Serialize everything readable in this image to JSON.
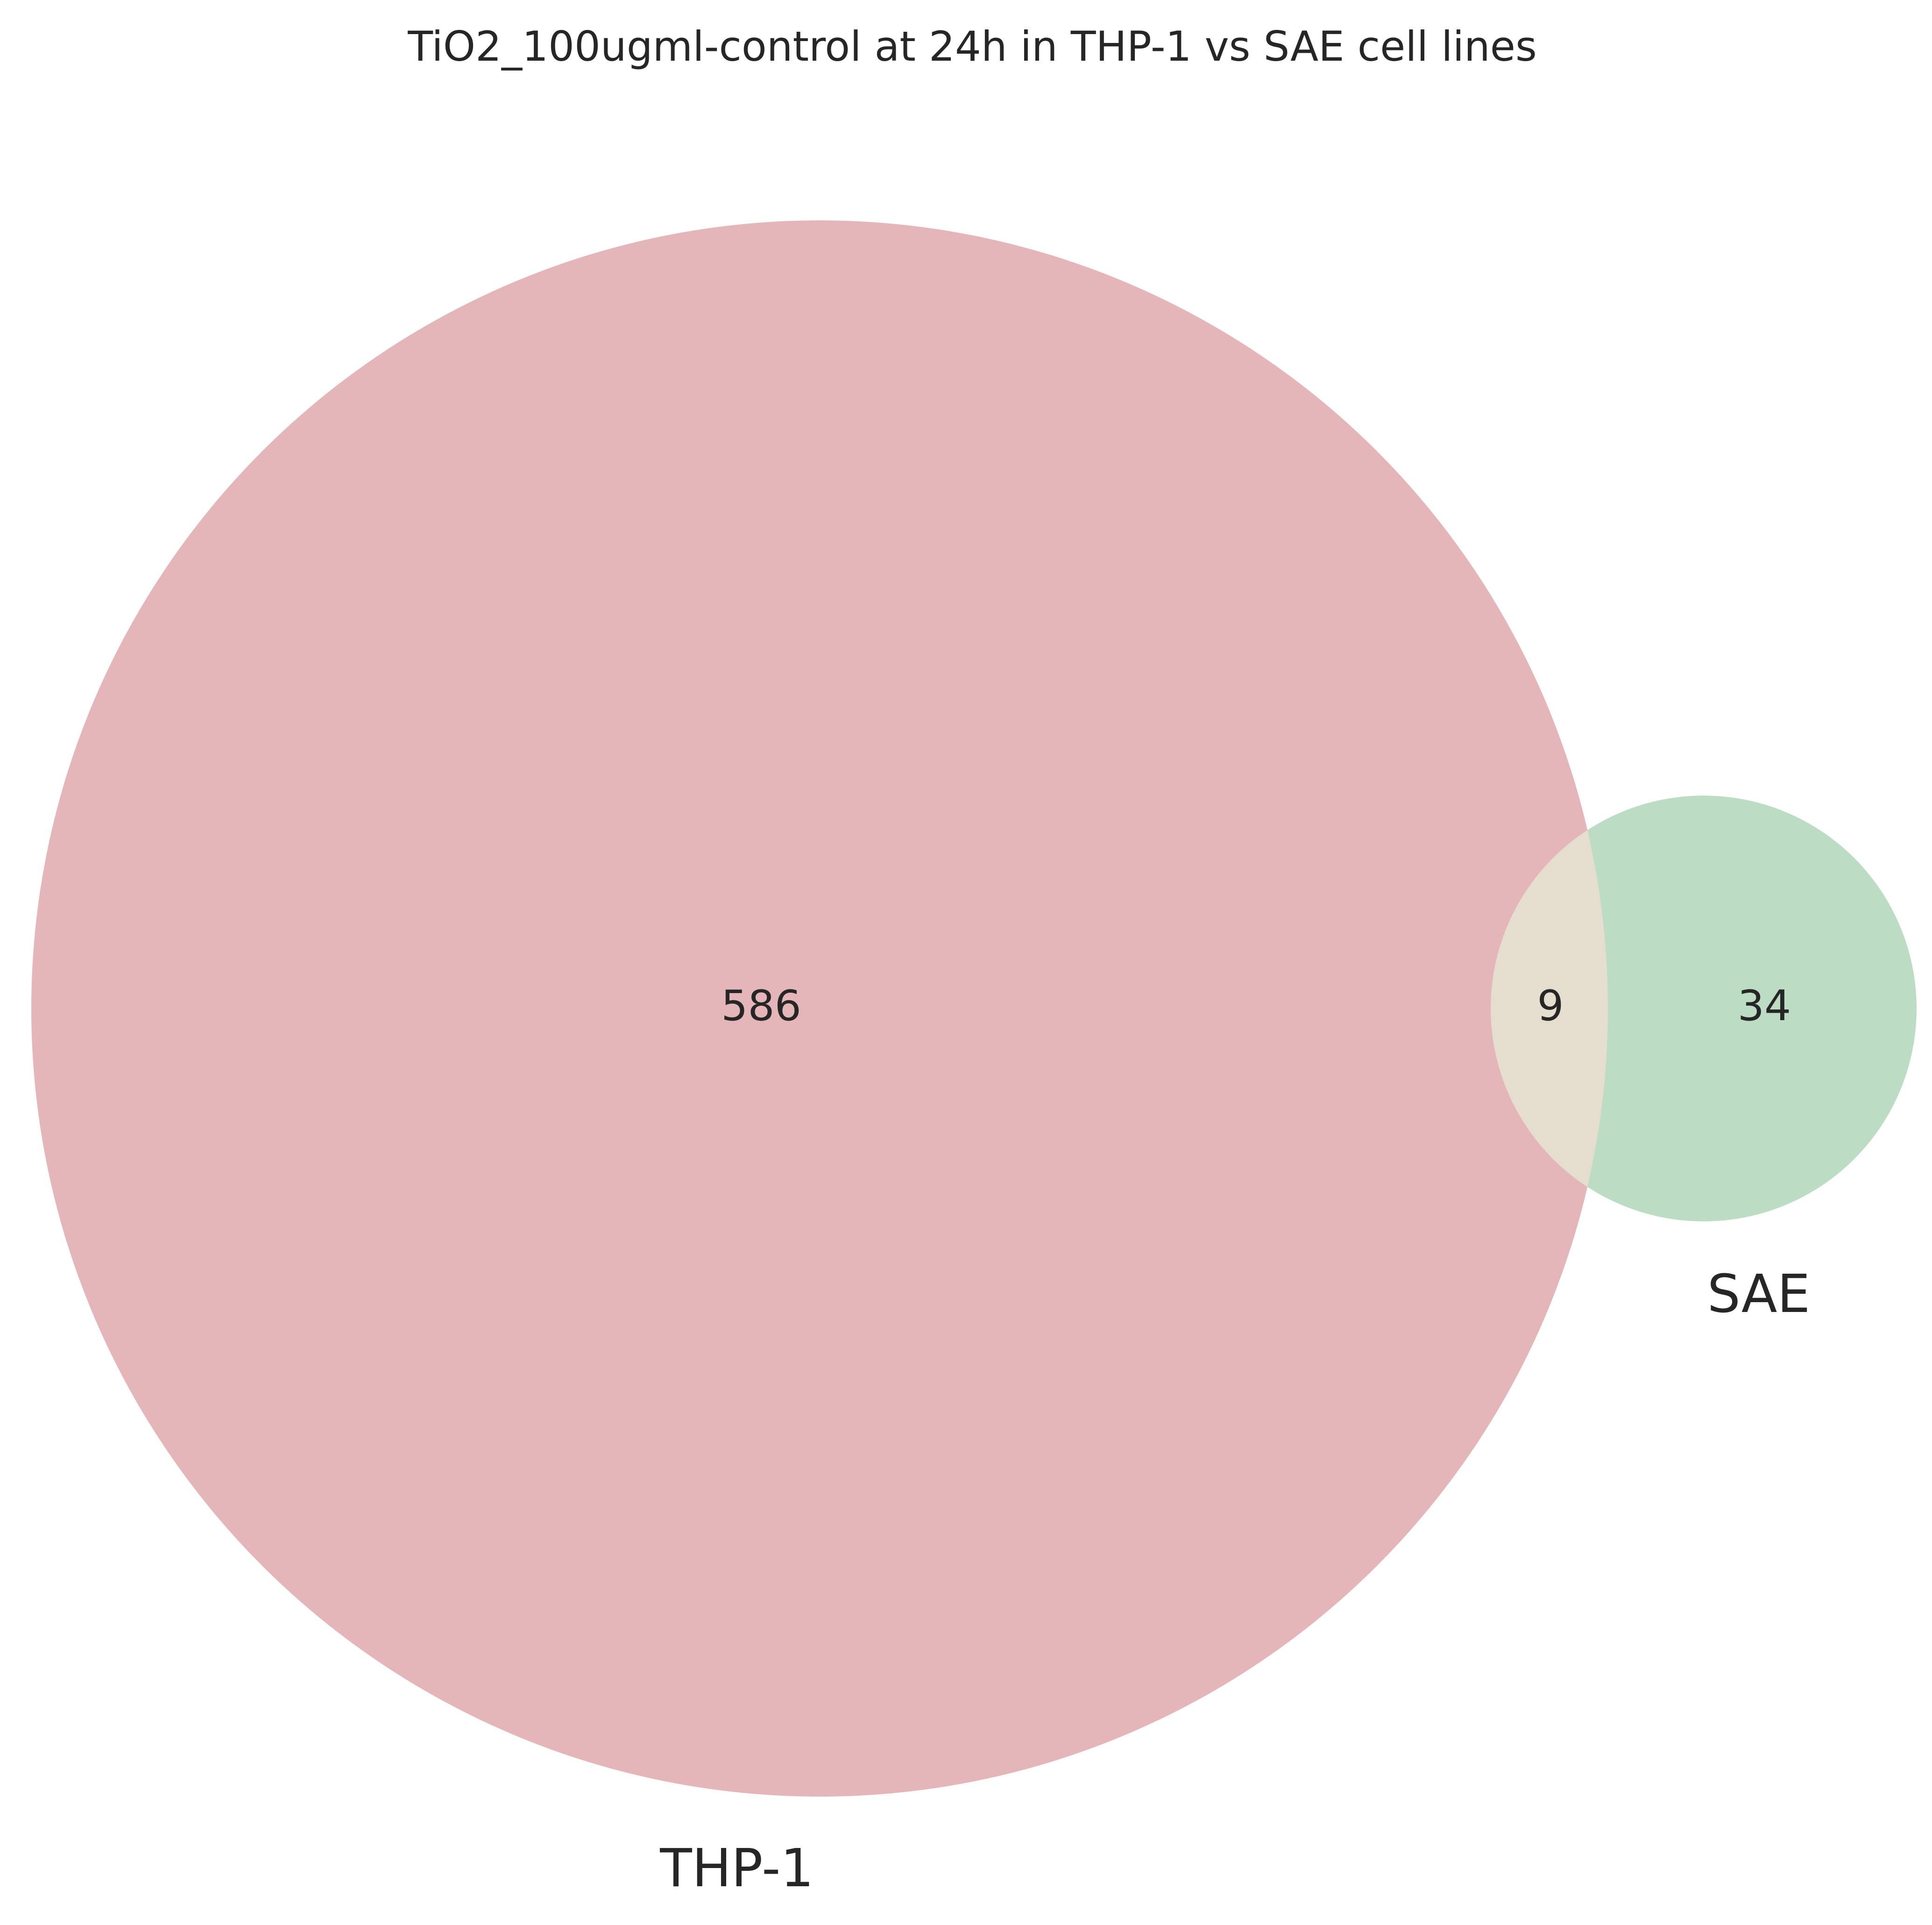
{
  "title": "TiO2_100ugml-control at 24h in THP-1 vs SAE cell lines",
  "sets": [
    {
      "name": "THP-1",
      "color": "#e5b6b9"
    },
    {
      "name": "SAE",
      "color": "#bcdcc4"
    }
  ],
  "overlap_color": "#e5ddcd",
  "counts": {
    "only_thp1": "586",
    "intersection": "9",
    "only_sae": "34"
  }
}
